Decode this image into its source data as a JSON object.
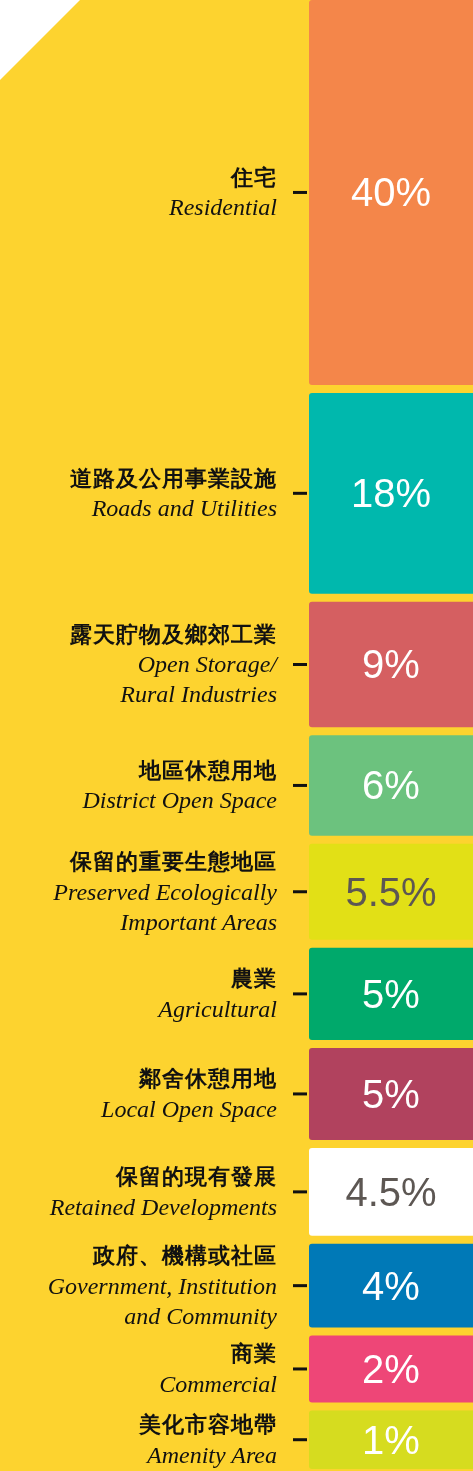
{
  "chart_data": {
    "type": "other",
    "categories": [
      "住宅\nResidential",
      "道路及公用事業設施\nRoads and Utilities",
      "露天貯物及鄉郊工業\nOpen Storage/\nRural Industries",
      "地區休憩用地\nDistrict Open Space",
      "保留的重要生態地區\nPreserved Ecologically\nImportant Areas",
      "農業\nAgricultural",
      "鄰舍休憩用地\nLocal Open Space",
      "保留的現有發展\nRetained Developments",
      "政府、機構或社區\nGovernment, Institution\nand Community",
      "商業\nCommercial",
      "美化市容地帶\nAmenity Area"
    ],
    "values": [
      40,
      18,
      9,
      6,
      5.5,
      5,
      5,
      4.5,
      4,
      2,
      1
    ],
    "value_labels": [
      "40%",
      "18%",
      "9%",
      "6%",
      "5.5%",
      "5%",
      "5%",
      "4.5%",
      "4%",
      "2%",
      "1%"
    ],
    "colors": [
      "#f4864a",
      "#00b8ad",
      "#d55f61",
      "#6cc27e",
      "#e2e016",
      "#00a96b",
      "#b1425e",
      "#ffffff",
      "#0079b7",
      "#ee4677",
      "#d6dc1f"
    ]
  }
}
